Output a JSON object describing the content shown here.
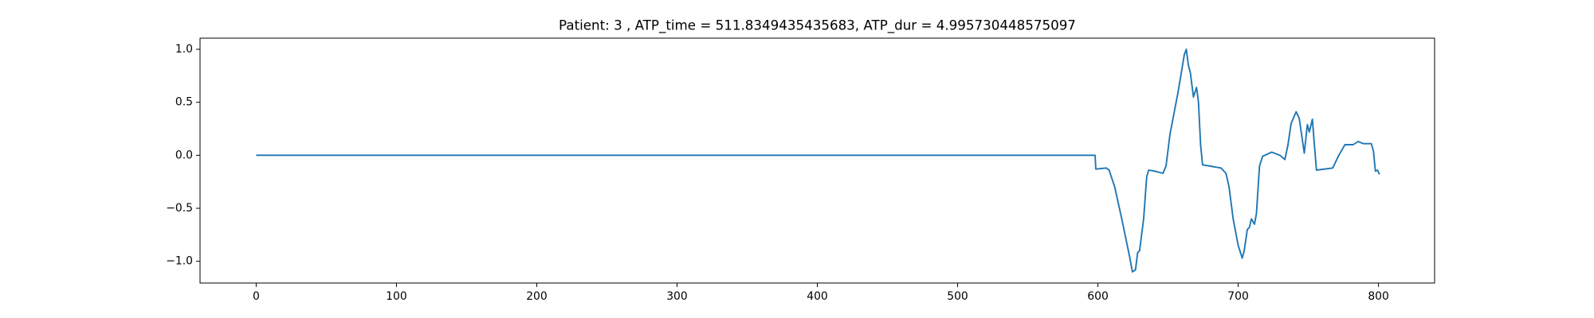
{
  "chart_data": {
    "type": "line",
    "title": "Patient: 3 , ATP_time = 511.8349435435683, ATP_dur = 4.995730448575097",
    "x": [
      0,
      598,
      598.5,
      606,
      608,
      612,
      617,
      622.5,
      624.6,
      626.8,
      628.3,
      629.7,
      632.6,
      634.8,
      636.2,
      640.6,
      646.4,
      648.6,
      651.4,
      657.2,
      661.6,
      663,
      664.5,
      665.9,
      668.1,
      670.3,
      671.7,
      673.2,
      674.6,
      687.7,
      691.3,
      693.5,
      696.4,
      700,
      702.9,
      704.3,
      706.5,
      708,
      709.4,
      711.6,
      713,
      715.2,
      717.4,
      723.9,
      729.7,
      733.3,
      735.5,
      737.7,
      741.3,
      743.5,
      747.1,
      749.3,
      750.7,
      752.9,
      754.3,
      755.8,
      767.4,
      771.7,
      776.1,
      781.9,
      785.5,
      789.1,
      794.9,
      796.4,
      797.8,
      799.3,
      800.7
    ],
    "series": [
      {
        "color": "#1f77b4",
        "values": [
          0,
          0,
          -0.13,
          -0.12,
          -0.14,
          -0.3,
          -0.6,
          -0.95,
          -1.1,
          -1.08,
          -0.92,
          -0.9,
          -0.6,
          -0.2,
          -0.14,
          -0.15,
          -0.17,
          -0.1,
          0.2,
          0.6,
          0.95,
          1.0,
          0.85,
          0.78,
          0.55,
          0.64,
          0.5,
          0.1,
          -0.09,
          -0.12,
          -0.17,
          -0.3,
          -0.6,
          -0.85,
          -0.97,
          -0.9,
          -0.7,
          -0.68,
          -0.6,
          -0.65,
          -0.55,
          -0.1,
          -0.01,
          0.03,
          0,
          -0.04,
          0.1,
          0.3,
          0.41,
          0.35,
          0.02,
          0.29,
          0.22,
          0.34,
          0.1,
          -0.14,
          -0.12,
          0.0,
          0.1,
          0.1,
          0.13,
          0.11,
          0.11,
          0.04,
          -0.15,
          -0.14,
          -0.18
        ]
      }
    ],
    "xlim": [
      -40,
      840
    ],
    "xticks": [
      0,
      100,
      200,
      300,
      400,
      500,
      600,
      700,
      800
    ],
    "ylim": [
      -1.205,
      1.105
    ],
    "yticks": [
      {
        "value": -1,
        "label": "−1.0"
      },
      {
        "value": -0.5,
        "label": "−0.5"
      },
      {
        "value": 0,
        "label": "0.0"
      },
      {
        "value": 0.5,
        "label": "0.5"
      },
      {
        "value": 1,
        "label": "1.0"
      }
    ]
  }
}
